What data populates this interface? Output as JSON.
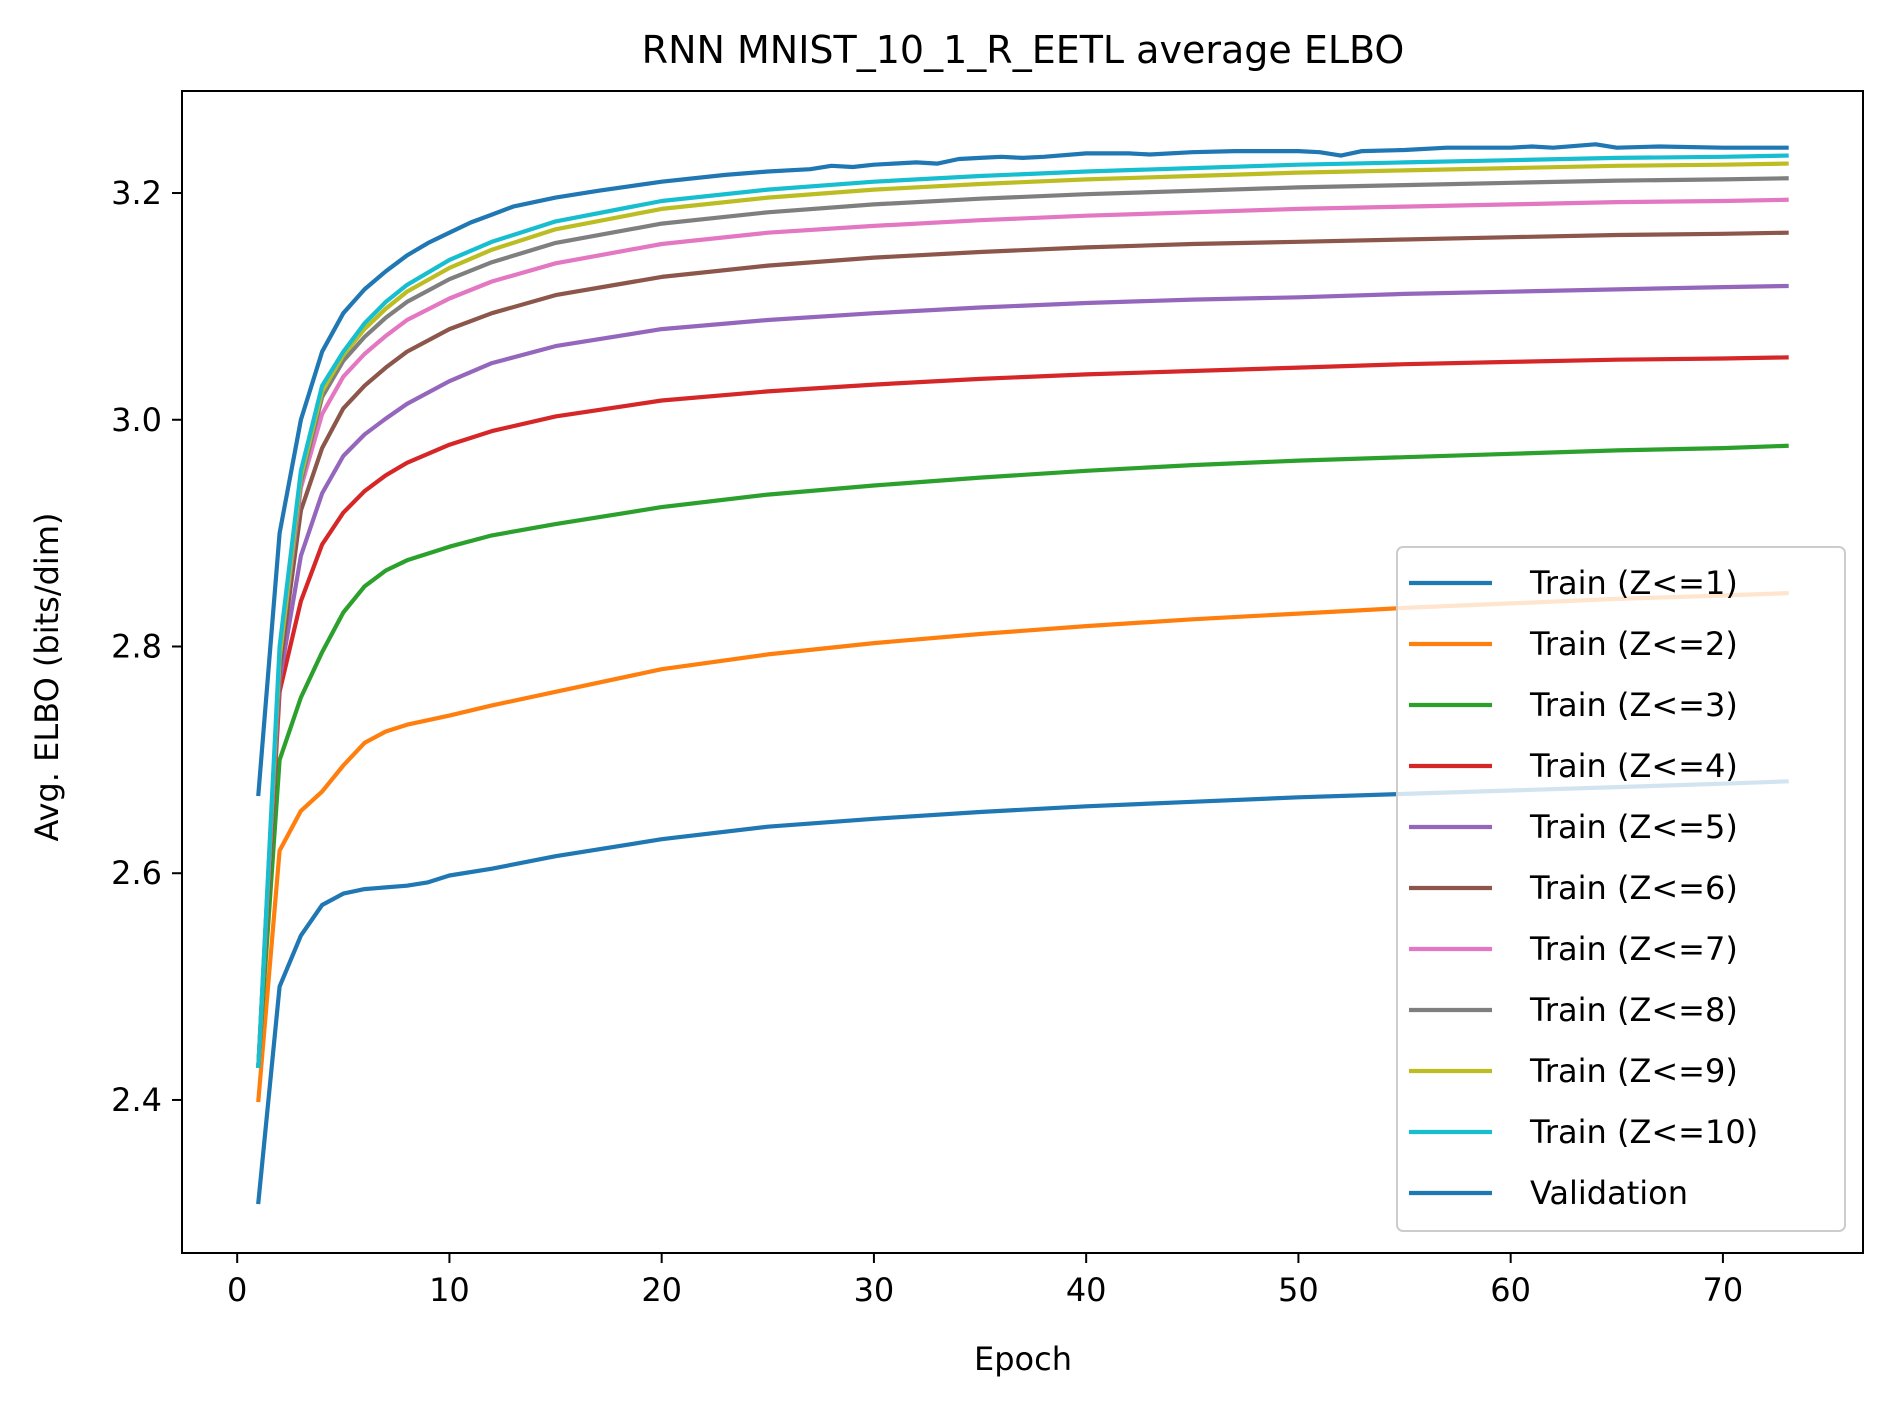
{
  "chart_data": {
    "type": "line",
    "title": "RNN MNIST_10_1_R_EETL average ELBO",
    "xlabel": "Epoch",
    "ylabel": "Avg. ELBO (bits/dim)",
    "xlim": [
      -2.6,
      76.6
    ],
    "ylim": [
      2.265,
      3.29
    ],
    "xticks": [
      0,
      10,
      20,
      30,
      40,
      50,
      60,
      70
    ],
    "yticks": [
      2.4,
      2.6,
      2.8,
      3.0,
      3.2
    ],
    "ytick_labels": [
      "2.4",
      "2.6",
      "2.8",
      "3.0",
      "3.2"
    ],
    "grid": false,
    "legend_position": "lower-right",
    "series": [
      {
        "name": "Train (Z<=1)",
        "color": "#1f77b4",
        "x": [
          1,
          2,
          3,
          4,
          5,
          6,
          8,
          9,
          10,
          12,
          15,
          20,
          25,
          30,
          35,
          40,
          45,
          50,
          55,
          60,
          65,
          70,
          73
        ],
        "y": [
          2.31,
          2.5,
          2.545,
          2.572,
          2.582,
          2.586,
          2.589,
          2.592,
          2.598,
          2.604,
          2.615,
          2.63,
          2.641,
          2.648,
          2.654,
          2.659,
          2.663,
          2.667,
          2.67,
          2.673,
          2.676,
          2.679,
          2.681
        ]
      },
      {
        "name": "Train (Z<=2)",
        "color": "#ff7f0e",
        "x": [
          1,
          2,
          3,
          4,
          5,
          6,
          7,
          8,
          10,
          12,
          15,
          20,
          25,
          30,
          35,
          40,
          45,
          50,
          55,
          60,
          65,
          70,
          73
        ],
        "y": [
          2.4,
          2.62,
          2.655,
          2.672,
          2.695,
          2.715,
          2.725,
          2.731,
          2.739,
          2.748,
          2.76,
          2.78,
          2.793,
          2.803,
          2.811,
          2.818,
          2.824,
          2.829,
          2.834,
          2.838,
          2.842,
          2.845,
          2.847
        ]
      },
      {
        "name": "Train (Z<=3)",
        "color": "#2ca02c",
        "x": [
          1,
          2,
          3,
          4,
          5,
          6,
          7,
          8,
          10,
          12,
          15,
          20,
          25,
          30,
          35,
          40,
          45,
          50,
          55,
          60,
          65,
          70,
          73
        ],
        "y": [
          2.43,
          2.7,
          2.755,
          2.795,
          2.83,
          2.853,
          2.867,
          2.876,
          2.888,
          2.898,
          2.908,
          2.923,
          2.934,
          2.942,
          2.949,
          2.955,
          2.96,
          2.964,
          2.967,
          2.97,
          2.973,
          2.975,
          2.977
        ]
      },
      {
        "name": "Train (Z<=4)",
        "color": "#d62728",
        "x": [
          1,
          2,
          3,
          4,
          5,
          6,
          7,
          8,
          10,
          12,
          15,
          20,
          25,
          30,
          35,
          40,
          45,
          50,
          55,
          60,
          65,
          70,
          73
        ],
        "y": [
          2.43,
          2.76,
          2.84,
          2.89,
          2.918,
          2.937,
          2.951,
          2.962,
          2.978,
          2.99,
          3.003,
          3.017,
          3.025,
          3.031,
          3.036,
          3.04,
          3.043,
          3.046,
          3.049,
          3.051,
          3.053,
          3.054,
          3.055
        ]
      },
      {
        "name": "Train (Z<=5)",
        "color": "#9467bd",
        "x": [
          1,
          2,
          3,
          4,
          5,
          6,
          7,
          8,
          10,
          12,
          15,
          20,
          25,
          30,
          35,
          40,
          45,
          50,
          55,
          60,
          65,
          70,
          73
        ],
        "y": [
          2.43,
          2.77,
          2.88,
          2.935,
          2.968,
          2.987,
          3.001,
          3.014,
          3.034,
          3.05,
          3.065,
          3.08,
          3.088,
          3.094,
          3.099,
          3.103,
          3.106,
          3.108,
          3.111,
          3.113,
          3.115,
          3.117,
          3.118
        ]
      },
      {
        "name": "Train (Z<=6)",
        "color": "#8c564b",
        "x": [
          1,
          2,
          3,
          4,
          5,
          6,
          7,
          8,
          10,
          12,
          15,
          20,
          25,
          30,
          35,
          40,
          45,
          50,
          55,
          60,
          65,
          70,
          73
        ],
        "y": [
          2.43,
          2.78,
          2.92,
          2.975,
          3.01,
          3.03,
          3.046,
          3.06,
          3.08,
          3.094,
          3.11,
          3.126,
          3.136,
          3.143,
          3.148,
          3.152,
          3.155,
          3.157,
          3.159,
          3.161,
          3.163,
          3.164,
          3.165
        ]
      },
      {
        "name": "Train (Z<=7)",
        "color": "#e377c2",
        "x": [
          1,
          2,
          3,
          4,
          5,
          6,
          7,
          8,
          10,
          12,
          15,
          20,
          25,
          30,
          35,
          40,
          45,
          50,
          55,
          60,
          65,
          70,
          73
        ],
        "y": [
          2.43,
          2.79,
          2.94,
          3.005,
          3.038,
          3.058,
          3.074,
          3.088,
          3.107,
          3.122,
          3.138,
          3.155,
          3.165,
          3.171,
          3.176,
          3.18,
          3.183,
          3.186,
          3.188,
          3.19,
          3.192,
          3.193,
          3.194
        ]
      },
      {
        "name": "Train (Z<=8)",
        "color": "#7f7f7f",
        "x": [
          1,
          2,
          3,
          4,
          5,
          6,
          7,
          8,
          10,
          12,
          15,
          20,
          25,
          30,
          35,
          40,
          45,
          50,
          55,
          60,
          65,
          70,
          73
        ],
        "y": [
          2.43,
          2.79,
          2.945,
          3.02,
          3.052,
          3.073,
          3.09,
          3.104,
          3.124,
          3.139,
          3.156,
          3.173,
          3.183,
          3.19,
          3.195,
          3.199,
          3.202,
          3.205,
          3.207,
          3.209,
          3.211,
          3.212,
          3.213
        ]
      },
      {
        "name": "Train (Z<=9)",
        "color": "#bcbd22",
        "x": [
          1,
          2,
          3,
          4,
          5,
          6,
          7,
          8,
          10,
          12,
          15,
          20,
          25,
          30,
          35,
          40,
          45,
          50,
          55,
          60,
          65,
          70,
          73
        ],
        "y": [
          2.43,
          2.79,
          2.95,
          3.025,
          3.057,
          3.08,
          3.098,
          3.113,
          3.134,
          3.15,
          3.168,
          3.186,
          3.196,
          3.203,
          3.208,
          3.212,
          3.215,
          3.218,
          3.22,
          3.222,
          3.224,
          3.225,
          3.226
        ]
      },
      {
        "name": "Train (Z<=10)",
        "color": "#17becf",
        "x": [
          1,
          2,
          3,
          4,
          5,
          6,
          7,
          8,
          10,
          12,
          15,
          20,
          25,
          30,
          35,
          40,
          45,
          50,
          55,
          60,
          65,
          70,
          73
        ],
        "y": [
          2.43,
          2.8,
          2.955,
          3.03,
          3.06,
          3.085,
          3.104,
          3.119,
          3.141,
          3.157,
          3.175,
          3.193,
          3.203,
          3.21,
          3.215,
          3.219,
          3.222,
          3.225,
          3.227,
          3.229,
          3.231,
          3.232,
          3.233
        ]
      },
      {
        "name": "Validation",
        "color": "#1f77b4",
        "x": [
          1,
          2,
          3,
          4,
          5,
          6,
          7,
          8,
          9,
          10,
          11,
          12,
          13,
          15,
          17,
          20,
          23,
          25,
          27,
          28,
          29,
          30,
          32,
          33,
          34,
          35,
          36,
          37,
          38,
          40,
          42,
          43,
          45,
          47,
          48,
          50,
          51,
          52,
          53,
          55,
          57,
          58,
          60,
          61,
          62,
          64,
          65,
          67,
          70,
          73
        ],
        "y": [
          2.67,
          2.9,
          3.0,
          3.06,
          3.094,
          3.115,
          3.131,
          3.145,
          3.156,
          3.165,
          3.174,
          3.181,
          3.188,
          3.196,
          3.202,
          3.21,
          3.216,
          3.219,
          3.221,
          3.224,
          3.223,
          3.225,
          3.227,
          3.226,
          3.23,
          3.231,
          3.232,
          3.231,
          3.232,
          3.235,
          3.235,
          3.234,
          3.236,
          3.237,
          3.237,
          3.237,
          3.236,
          3.233,
          3.237,
          3.238,
          3.24,
          3.24,
          3.24,
          3.241,
          3.24,
          3.243,
          3.24,
          3.241,
          3.24,
          3.24
        ]
      }
    ]
  }
}
